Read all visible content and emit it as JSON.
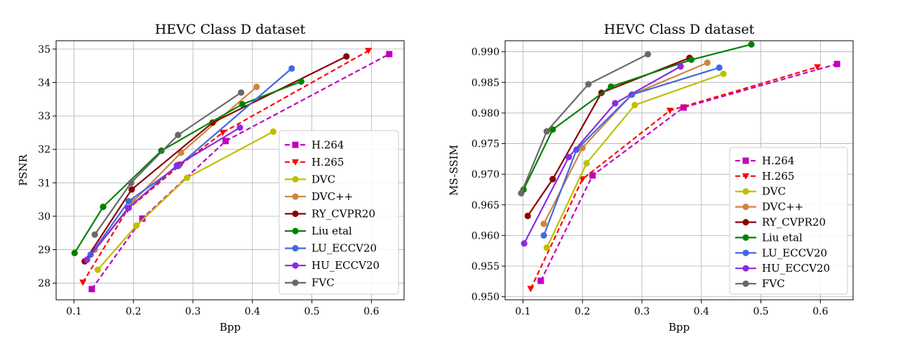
{
  "chart_data": [
    {
      "type": "line",
      "title": "HEVC Class D dataset",
      "xlabel": "Bpp",
      "ylabel": "PSNR",
      "xlim": [
        0.07,
        0.655
      ],
      "ylim": [
        27.5,
        35.25
      ],
      "xticks": [
        "0.1",
        "0.2",
        "0.3",
        "0.4",
        "0.5",
        "0.6"
      ],
      "yticks": [
        "28",
        "29",
        "30",
        "31",
        "32",
        "33",
        "34",
        "35"
      ],
      "legend_position": "lower-right",
      "series": [
        {
          "name": "H.264",
          "color": "#bf00bf",
          "dashed": true,
          "marker": "square",
          "x": [
            0.13,
            0.215,
            0.355,
            0.63
          ],
          "y": [
            27.82,
            29.93,
            32.25,
            34.85
          ]
        },
        {
          "name": "H.265",
          "color": "#ff0000",
          "dashed": true,
          "marker": "triangle-down",
          "x": [
            0.115,
            0.19,
            0.28,
            0.35,
            0.595
          ],
          "y": [
            28.02,
            30.2,
            31.55,
            32.5,
            34.95
          ]
        },
        {
          "name": "DVC",
          "color": "#bfbf00",
          "dashed": false,
          "marker": "circle",
          "x": [
            0.14,
            0.205,
            0.29,
            0.435
          ],
          "y": [
            28.4,
            29.72,
            31.15,
            32.53
          ]
        },
        {
          "name": "DVC++",
          "color": "#cd853f",
          "dashed": false,
          "marker": "circle",
          "x": [
            0.135,
            0.2,
            0.28,
            0.407
          ],
          "y": [
            29.0,
            30.45,
            31.9,
            33.87
          ]
        },
        {
          "name": "RY_CVPR20",
          "color": "#8b0000",
          "dashed": false,
          "marker": "circle",
          "x": [
            0.118,
            0.197,
            0.333,
            0.558
          ],
          "y": [
            28.65,
            30.8,
            32.8,
            34.78
          ]
        },
        {
          "name": "Liu etal",
          "color": "#008000",
          "dashed": false,
          "marker": "circle",
          "x": [
            0.101,
            0.149,
            0.247,
            0.383,
            0.482
          ],
          "y": [
            28.9,
            30.28,
            31.96,
            33.35,
            34.03
          ]
        },
        {
          "name": "LU_ECCV20",
          "color": "#4169e1",
          "dashed": false,
          "marker": "circle",
          "x": [
            0.128,
            0.192,
            0.275,
            0.466
          ],
          "y": [
            28.85,
            30.45,
            31.5,
            34.42
          ]
        },
        {
          "name": "HU_ECCV20",
          "color": "#8a2be2",
          "dashed": false,
          "marker": "circle",
          "x": [
            0.122,
            0.192,
            0.273,
            0.379
          ],
          "y": [
            28.7,
            30.25,
            31.52,
            32.65
          ]
        },
        {
          "name": "FVC",
          "color": "#696969",
          "dashed": false,
          "marker": "circle",
          "x": [
            0.135,
            0.196,
            0.275,
            0.381
          ],
          "y": [
            29.45,
            31.0,
            32.43,
            33.7
          ]
        }
      ]
    },
    {
      "type": "line",
      "title": "HEVC Class D dataset",
      "xlabel": "Bpp",
      "ylabel": "MS-SSIM",
      "xlim": [
        0.07,
        0.655
      ],
      "ylim": [
        0.9495,
        0.9918
      ],
      "xticks": [
        "0.1",
        "0.2",
        "0.3",
        "0.4",
        "0.5",
        "0.6"
      ],
      "yticks": [
        "0.950",
        "0.955",
        "0.960",
        "0.965",
        "0.970",
        "0.975",
        "0.980",
        "0.985",
        "0.990"
      ],
      "legend_position": "lower-right",
      "series": [
        {
          "name": "H.264",
          "color": "#bf00bf",
          "dashed": true,
          "marker": "square",
          "x": [
            0.13,
            0.217,
            0.37,
            0.628
          ],
          "y": [
            0.9526,
            0.9698,
            0.9809,
            0.988
          ]
        },
        {
          "name": "H.265",
          "color": "#ff0000",
          "dashed": true,
          "marker": "triangle-down",
          "x": [
            0.113,
            0.2,
            0.347,
            0.595
          ],
          "y": [
            0.9513,
            0.9692,
            0.9804,
            0.9875
          ]
        },
        {
          "name": "DVC",
          "color": "#bfbf00",
          "dashed": false,
          "marker": "circle",
          "x": [
            0.14,
            0.207,
            0.288,
            0.437
          ],
          "y": [
            0.958,
            0.9718,
            0.9813,
            0.9864
          ]
        },
        {
          "name": "DVC++",
          "color": "#cd853f",
          "dashed": false,
          "marker": "circle",
          "x": [
            0.135,
            0.2,
            0.283,
            0.41
          ],
          "y": [
            0.9619,
            0.9743,
            0.983,
            0.9882
          ]
        },
        {
          "name": "RY_CVPR20",
          "color": "#8b0000",
          "dashed": false,
          "marker": "circle",
          "x": [
            0.108,
            0.15,
            0.232,
            0.38
          ],
          "y": [
            0.9632,
            0.9692,
            0.9833,
            0.989
          ]
        },
        {
          "name": "Liu etal",
          "color": "#008000",
          "dashed": false,
          "marker": "circle",
          "x": [
            0.101,
            0.15,
            0.248,
            0.383,
            0.484
          ],
          "y": [
            0.9675,
            0.9773,
            0.9843,
            0.9887,
            0.9912
          ]
        },
        {
          "name": "LU_ECCV20",
          "color": "#4169e1",
          "dashed": false,
          "marker": "circle",
          "x": [
            0.135,
            0.19,
            0.283,
            0.43
          ],
          "y": [
            0.96,
            0.974,
            0.983,
            0.9874
          ]
        },
        {
          "name": "HU_ECCV20",
          "color": "#8a2be2",
          "dashed": false,
          "marker": "circle",
          "x": [
            0.102,
            0.177,
            0.255,
            0.365
          ],
          "y": [
            0.9587,
            0.9728,
            0.9816,
            0.9876
          ]
        },
        {
          "name": "FVC",
          "color": "#696969",
          "dashed": false,
          "marker": "circle",
          "x": [
            0.097,
            0.14,
            0.21,
            0.31
          ],
          "y": [
            0.9669,
            0.977,
            0.9847,
            0.9896
          ]
        }
      ]
    }
  ]
}
